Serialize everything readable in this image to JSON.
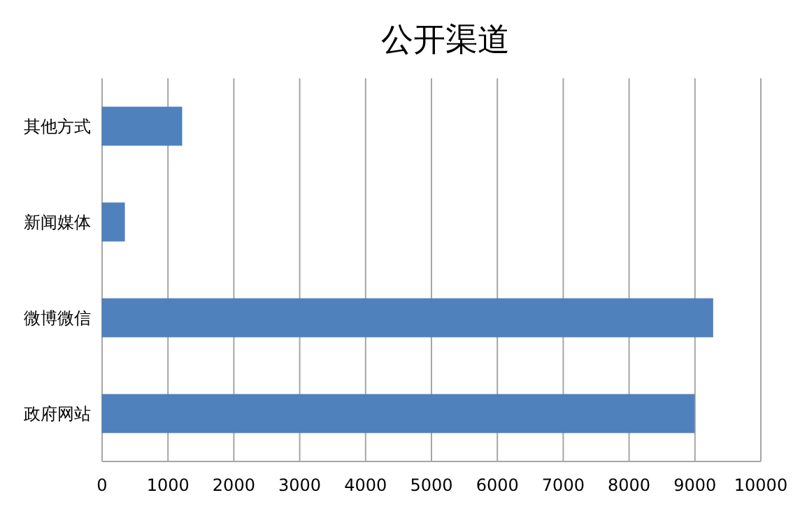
{
  "chart_data": {
    "type": "bar",
    "orientation": "horizontal",
    "title": "公开渠道",
    "categories": [
      "其他方式",
      "新闻媒体",
      "微博微信",
      "政府网站"
    ],
    "values": [
      1210,
      340,
      9270,
      8990
    ],
    "color": "#4f81bd",
    "xlim": [
      0,
      10000
    ],
    "xticks": [
      0,
      1000,
      2000,
      3000,
      4000,
      5000,
      6000,
      7000,
      8000,
      9000,
      10000
    ],
    "grid": "x"
  }
}
